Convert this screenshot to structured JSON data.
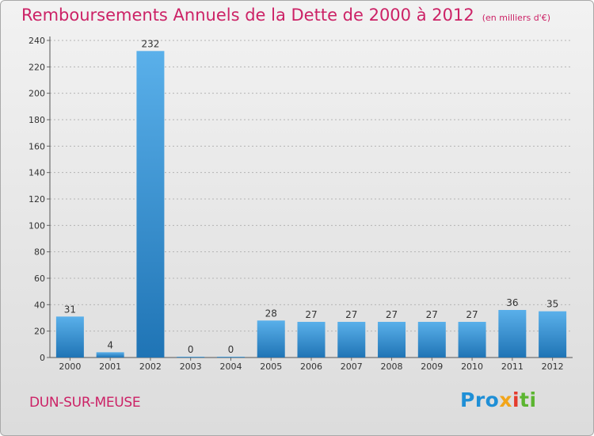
{
  "title": "Remboursements Annuels de la Dette de 2000 à 2012",
  "subtitle": "(en milliers d'€)",
  "commune": "DUN-SUR-MEUSE",
  "brand": {
    "p1": "Pro",
    "p2": "x",
    "p3": "i",
    "p4": "ti"
  },
  "colors": {
    "title": "#cc2266",
    "bar_top": "#5ab0ea",
    "bar_bottom": "#1f74b5",
    "grid": "#b4b4b4"
  },
  "chart_data": {
    "type": "bar",
    "title": "Remboursements Annuels de la Dette de 2000 à 2012",
    "xlabel": "",
    "ylabel": "en milliers d'€",
    "categories": [
      "2000",
      "2001",
      "2002",
      "2003",
      "2004",
      "2005",
      "2006",
      "2007",
      "2008",
      "2009",
      "2010",
      "2011",
      "2012"
    ],
    "values": [
      31,
      4,
      232,
      0,
      0,
      28,
      27,
      27,
      27,
      27,
      27,
      36,
      35
    ],
    "ylim": [
      0,
      240
    ],
    "yticks": [
      0,
      20,
      40,
      60,
      80,
      100,
      120,
      140,
      160,
      180,
      200,
      220,
      240
    ],
    "grid": true
  }
}
